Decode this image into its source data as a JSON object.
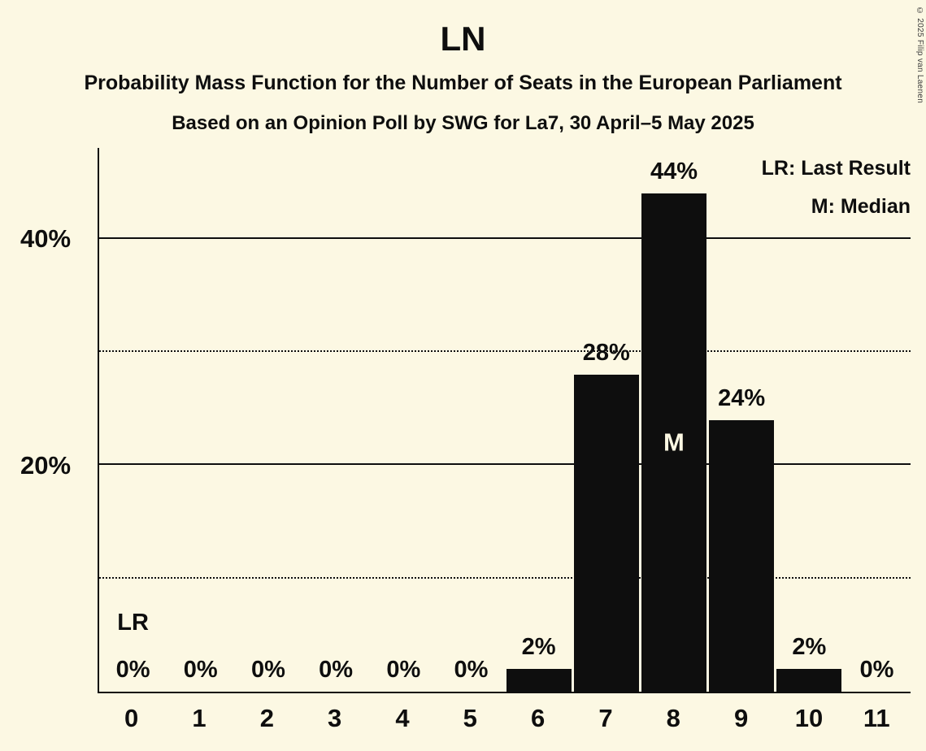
{
  "title": "LN",
  "subtitle1": "Probability Mass Function for the Number of Seats in the European Parliament",
  "subtitle2": "Based on an Opinion Poll by SWG for La7, 30 April–5 May 2025",
  "legend": {
    "lr": "LR: Last Result",
    "m": "M: Median"
  },
  "copyright": "© 2025 Filip van Laenen",
  "colors": {
    "background": "#fcf8e3",
    "bar": "#0e0e0e",
    "text": "#0e0e0e",
    "bar_inner_label": "#fcf8e3"
  },
  "chart_data": {
    "type": "bar",
    "title": "LN",
    "xlabel": "",
    "ylabel": "",
    "categories": [
      "0",
      "1",
      "2",
      "3",
      "4",
      "5",
      "6",
      "7",
      "8",
      "9",
      "10",
      "11"
    ],
    "values": [
      0,
      0,
      0,
      0,
      0,
      0,
      2,
      28,
      44,
      24,
      2,
      0
    ],
    "value_labels": [
      "0%",
      "0%",
      "0%",
      "0%",
      "0%",
      "0%",
      "2%",
      "28%",
      "44%",
      "24%",
      "2%",
      "0%"
    ],
    "ymax": 48,
    "yticks": [
      {
        "value": 20,
        "label": "20%"
      },
      {
        "value": 40,
        "label": "40%"
      }
    ],
    "gridlines": [
      {
        "value": 10,
        "style": "dotted"
      },
      {
        "value": 20,
        "style": "solid"
      },
      {
        "value": 30,
        "style": "dotted"
      },
      {
        "value": 40,
        "style": "solid"
      }
    ],
    "median_index": 8,
    "median_marker": "M",
    "last_result_index": 0,
    "last_result_marker": "LR",
    "legend_position": "top-right",
    "grid": true
  }
}
